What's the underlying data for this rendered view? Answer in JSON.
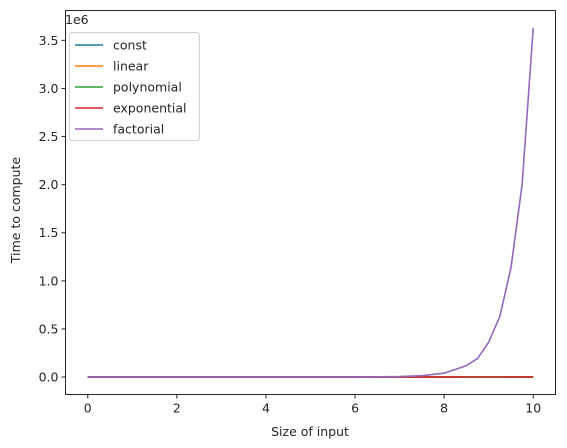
{
  "chart_data": {
    "type": "line",
    "xlabel": "Size of input",
    "ylabel": "Time to compute",
    "y_offset_label": "1e6",
    "xlim": [
      -0.5,
      10.5
    ],
    "ylim": [
      -181440,
      3810240
    ],
    "x_ticks": [
      0,
      2,
      4,
      6,
      8,
      10
    ],
    "x_tick_labels": [
      "0",
      "2",
      "4",
      "6",
      "8",
      "10"
    ],
    "y_ticks": [
      0,
      500000,
      1000000,
      1500000,
      2000000,
      2500000,
      3000000,
      3500000
    ],
    "y_tick_labels": [
      "0.0",
      "0.5",
      "1.0",
      "1.5",
      "2.0",
      "2.5",
      "3.0",
      "3.5"
    ],
    "grid": false,
    "legend_position": "top-left",
    "x": [
      0,
      0.5,
      1,
      1.5,
      2,
      2.5,
      3,
      3.5,
      4,
      4.5,
      5,
      5.5,
      6,
      6.5,
      7,
      7.5,
      8,
      8.25,
      8.5,
      8.75,
      9,
      9.25,
      9.5,
      9.75,
      10
    ],
    "series": [
      {
        "name": "const",
        "color": "#1f77b4",
        "values": [
          1,
          1,
          1,
          1,
          1,
          1,
          1,
          1,
          1,
          1,
          1,
          1,
          1,
          1,
          1,
          1,
          1,
          1,
          1,
          1,
          1,
          1,
          1,
          1,
          1
        ]
      },
      {
        "name": "linear",
        "color": "#ff7f0e",
        "values": [
          0,
          0.5,
          1,
          1.5,
          2,
          2.5,
          3,
          3.5,
          4,
          4.5,
          5,
          5.5,
          6,
          6.5,
          7,
          7.5,
          8,
          8.25,
          8.5,
          8.75,
          9,
          9.25,
          9.5,
          9.75,
          10
        ]
      },
      {
        "name": "polynomial",
        "color": "#2ca02c",
        "values": [
          0,
          0.25,
          1,
          2.25,
          4,
          6.25,
          9,
          12.25,
          16,
          20.25,
          25,
          30.25,
          36,
          42.25,
          49,
          56.25,
          64,
          68.06,
          72.25,
          76.56,
          81,
          85.56,
          90.25,
          95.06,
          100
        ]
      },
      {
        "name": "exponential",
        "color": "#d62728",
        "values": [
          1,
          1.41,
          2,
          2.83,
          4,
          5.66,
          8,
          11.31,
          16,
          22.63,
          32,
          45.25,
          64,
          90.51,
          128,
          181.02,
          256,
          304.44,
          362.04,
          430.54,
          512,
          608.87,
          724.08,
          861.08,
          1024
        ]
      },
      {
        "name": "factorial",
        "color": "#9467bd",
        "values": [
          1,
          0.886,
          1,
          1.329,
          2,
          3.323,
          6,
          11.632,
          24,
          52.343,
          120,
          287.9,
          720,
          1871.3,
          5040,
          14034,
          40320,
          77880,
          119292,
          193000,
          362880,
          630000,
          1133278,
          2000000,
          3628800
        ]
      }
    ]
  }
}
